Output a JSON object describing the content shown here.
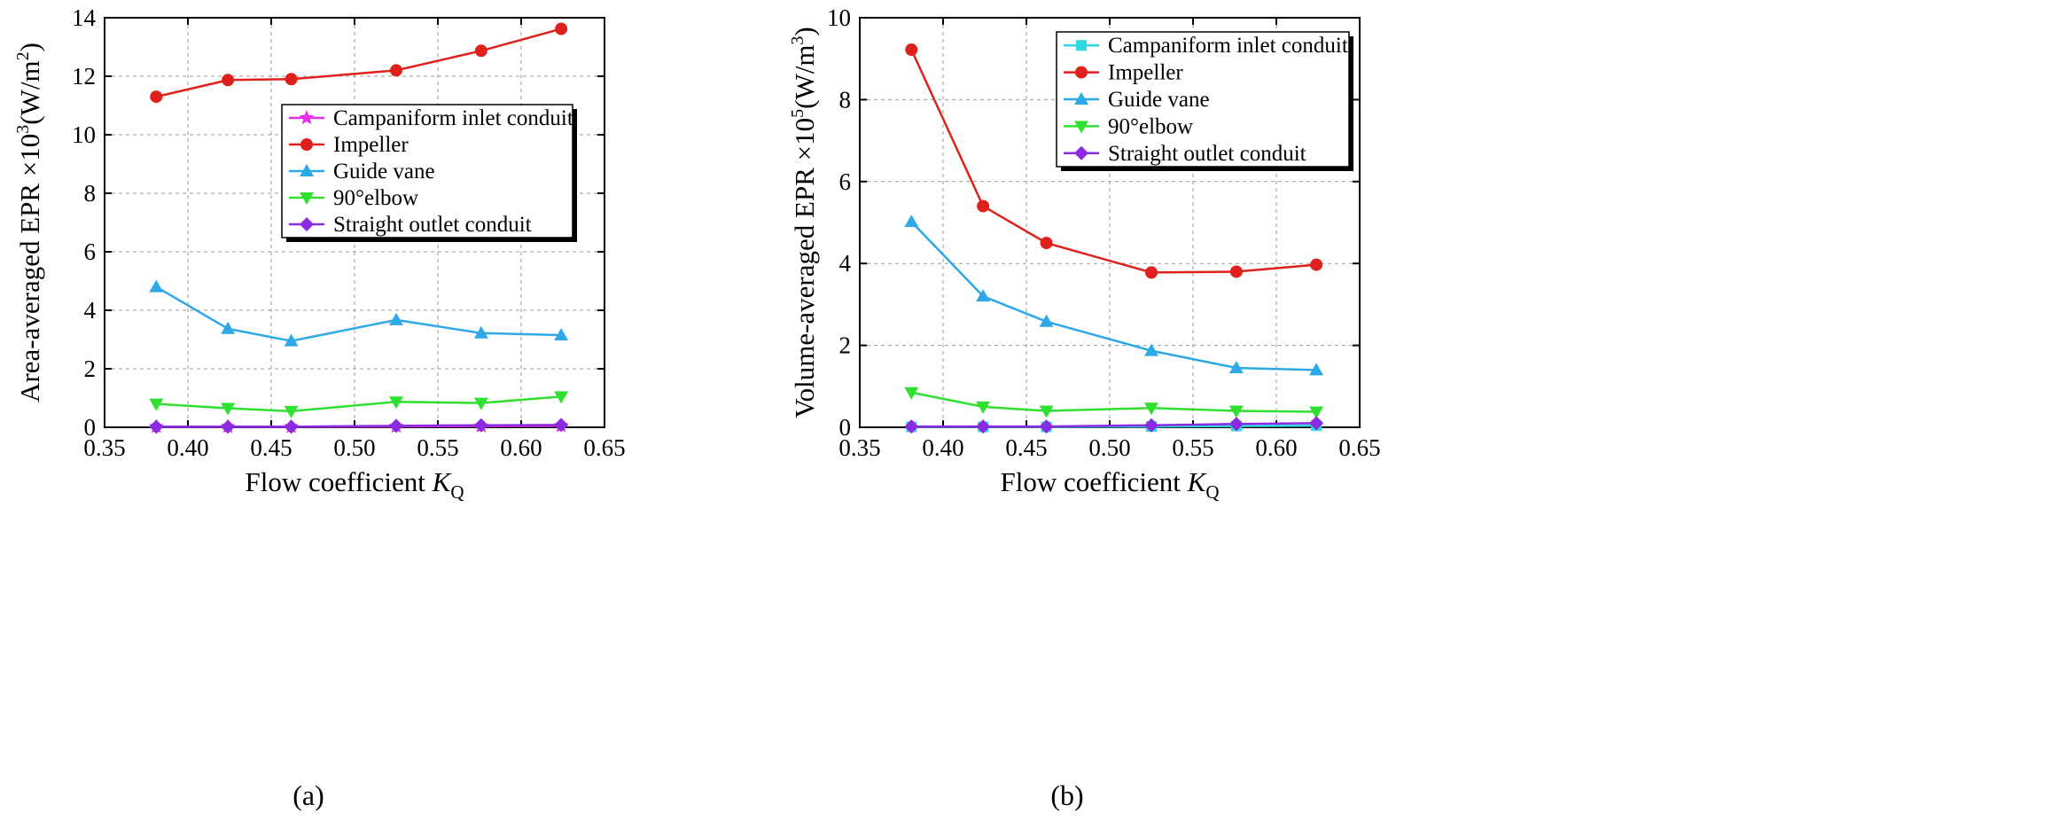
{
  "chart_data": [
    {
      "type": "line",
      "panel_label": "(a)",
      "xlabel": "Flow coefficient ",
      "xlabel_symbol": "K",
      "xlabel_sub": "Q",
      "ylabel_main": "Area-averaged EPR ×10",
      "ylabel_exp": "3",
      "ylabel_unit": "(W/m",
      "ylabel_unit_exp": "2",
      "ylabel_close": ")",
      "xlim": [
        0.35,
        0.65
      ],
      "ylim": [
        0,
        14
      ],
      "xticks": [
        "0.35",
        "0.40",
        "0.45",
        "0.50",
        "0.55",
        "0.60",
        "0.65"
      ],
      "yticks": [
        "0",
        "2",
        "4",
        "6",
        "8",
        "10",
        "12",
        "14"
      ],
      "grid": true,
      "legend_position": "center-right",
      "x": [
        0.381,
        0.424,
        0.462,
        0.525,
        0.576,
        0.624
      ],
      "series": [
        {
          "name": "Campaniform inlet conduit",
          "color": "#e830e8",
          "marker": "star",
          "values": [
            0.02,
            0.02,
            0.02,
            0.03,
            0.04,
            0.05
          ]
        },
        {
          "name": "Impeller",
          "color": "#e0201c",
          "marker": "circle",
          "values": [
            11.3,
            11.87,
            11.9,
            12.2,
            12.87,
            13.62
          ]
        },
        {
          "name": "Guide vane",
          "color": "#2ea8e6",
          "marker": "triangle-up",
          "values": [
            4.8,
            3.37,
            2.95,
            3.67,
            3.22,
            3.15
          ]
        },
        {
          "name": "90°elbow",
          "color": "#30e030",
          "marker": "triangle-down",
          "values": [
            0.8,
            0.65,
            0.55,
            0.87,
            0.83,
            1.05
          ]
        },
        {
          "name": "Straight outlet conduit",
          "color": "#8a2be2",
          "marker": "diamond",
          "values": [
            0.02,
            0.02,
            0.02,
            0.05,
            0.07,
            0.08
          ]
        }
      ]
    },
    {
      "type": "line",
      "panel_label": "(b)",
      "xlabel": "Flow coefficient ",
      "xlabel_symbol": "K",
      "xlabel_sub": "Q",
      "ylabel_main": "Volume-averaged EPR ×10",
      "ylabel_exp": "5",
      "ylabel_unit": "(W/m",
      "ylabel_unit_exp": "3",
      "ylabel_close": ")",
      "xlim": [
        0.35,
        0.65
      ],
      "ylim": [
        0,
        10
      ],
      "xticks": [
        "0.35",
        "0.40",
        "0.45",
        "0.50",
        "0.55",
        "0.60",
        "0.65"
      ],
      "yticks": [
        "0",
        "2",
        "4",
        "6",
        "8",
        "10"
      ],
      "grid": true,
      "legend_position": "top-right",
      "x": [
        0.381,
        0.424,
        0.462,
        0.525,
        0.576,
        0.624
      ],
      "series": [
        {
          "name": "Campaniform inlet conduit",
          "color": "#30d8e0",
          "marker": "square",
          "values": [
            0.01,
            0.01,
            0.01,
            0.02,
            0.03,
            0.04
          ]
        },
        {
          "name": "Impeller",
          "color": "#e0201c",
          "marker": "circle",
          "values": [
            9.22,
            5.4,
            4.5,
            3.78,
            3.8,
            3.97
          ]
        },
        {
          "name": "Guide vane",
          "color": "#2ea8e6",
          "marker": "triangle-up",
          "values": [
            5.02,
            3.2,
            2.58,
            1.87,
            1.45,
            1.4
          ]
        },
        {
          "name": "90°elbow",
          "color": "#30e030",
          "marker": "triangle-down",
          "values": [
            0.85,
            0.5,
            0.4,
            0.47,
            0.4,
            0.38
          ]
        },
        {
          "name": "Straight outlet conduit",
          "color": "#8a2be2",
          "marker": "diamond",
          "values": [
            0.02,
            0.02,
            0.02,
            0.05,
            0.08,
            0.1
          ]
        }
      ]
    }
  ]
}
